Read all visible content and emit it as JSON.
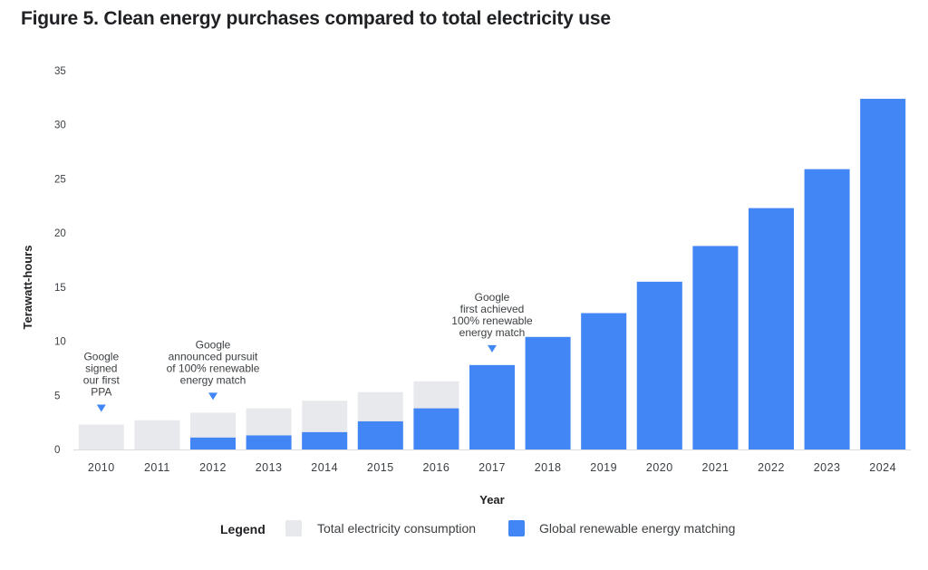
{
  "title": "Figure 5. Clean energy purchases compared to total electricity use",
  "chart_data": {
    "type": "bar",
    "title": "Figure 5. Clean energy purchases compared to total electricity use",
    "xlabel": "Year",
    "ylabel": "Terawatt-hours",
    "ylim": [
      0,
      35
    ],
    "yticks": [
      "0",
      "5",
      "10",
      "15",
      "20",
      "25",
      "30",
      "35"
    ],
    "categories": [
      "2010",
      "2011",
      "2012",
      "2013",
      "2014",
      "2015",
      "2016",
      "2017",
      "2018",
      "2019",
      "2020",
      "2021",
      "2022",
      "2023",
      "2024"
    ],
    "series": [
      {
        "name": "Total electricity consumption",
        "color": "#e8e9ec",
        "values": [
          2.3,
          2.7,
          3.4,
          3.8,
          4.5,
          5.3,
          6.3,
          7.8,
          10.4,
          12.6,
          15.5,
          18.8,
          22.3,
          25.9,
          32.4
        ]
      },
      {
        "name": "Global renewable energy matching",
        "color": "#4285f4",
        "values": [
          0,
          0,
          1.1,
          1.3,
          1.6,
          2.6,
          3.8,
          7.8,
          10.4,
          12.6,
          15.5,
          18.8,
          22.3,
          25.9,
          32.4
        ]
      }
    ],
    "annotations": [
      {
        "category": "2010",
        "lines": [
          "Google",
          "signed",
          "our first",
          "PPA"
        ]
      },
      {
        "category": "2012",
        "lines": [
          "Google",
          "announced pursuit",
          "of 100% renewable",
          "energy match"
        ]
      },
      {
        "category": "2017",
        "lines": [
          "Google",
          "first achieved",
          "100% renewable",
          "energy match"
        ]
      }
    ],
    "legend": {
      "title": "Legend",
      "placement": "bottom"
    }
  }
}
